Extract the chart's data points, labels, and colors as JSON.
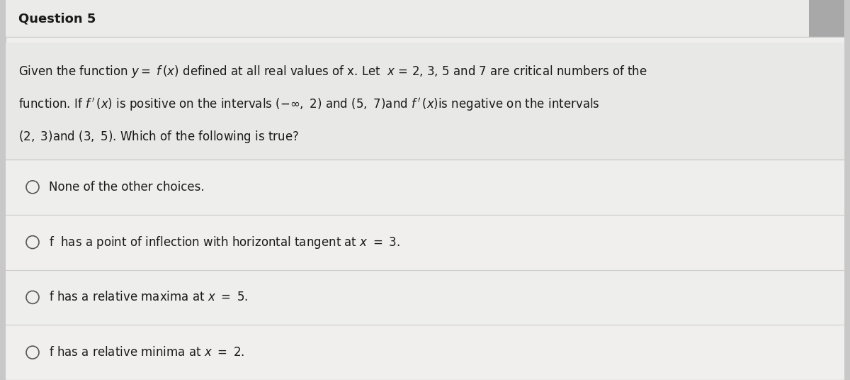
{
  "title": "Question 5",
  "title_fontsize": 13,
  "title_fontweight": "bold",
  "bg_outer": "#c8c8c8",
  "bg_main": "#f0efee",
  "bg_title": "#ebebea",
  "bg_question": "#e8e8e7",
  "bg_choice": "#eeeeed",
  "line_color": "#cccccc",
  "text_color": "#1a1a1a",
  "circle_color": "#555555",
  "q_line1": "Given the function $y =\\ f\\,(x)$ defined at all real values of x. Let  $x$ = 2, 3, 5 and 7 are critical numbers of the",
  "q_line2": "function. If $f\\,'\\,(x)$ is positive on the intervals $(-\\infty,\\ 2)$ and $(5,\\ 7)$and $f\\,'\\,(x)$is negative on the intervals",
  "q_line3": "$(2,\\ 3)$and $(3,\\ 5)$. Which of the following is true?",
  "choices": [
    "None of the other choices.",
    "f  has a point of inflection with horizontal tangent at $x\\ =\\ 3.$",
    "f has a relative maxima at $x\\ =\\ 5.$",
    "f has a relative minima at $x\\ =\\ 2.$"
  ],
  "figsize": [
    12.0,
    5.36
  ],
  "dpi": 100
}
